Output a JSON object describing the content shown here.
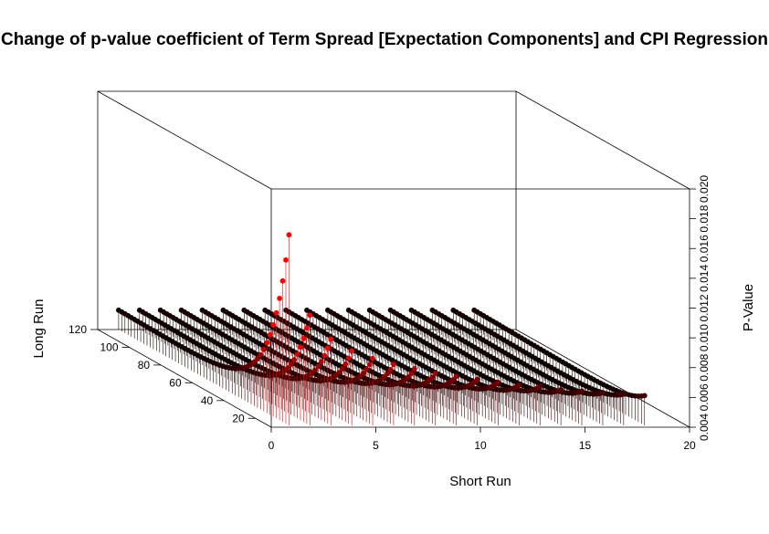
{
  "chart_data": {
    "type": "scatter",
    "title": "Change of p-value coefficient of Term Spread [Expectation Components] and CPI Regression",
    "xlabel": "Short Run",
    "ylabel": "Long Run",
    "zlabel": "P-Value",
    "x_ticks": [
      "0",
      "5",
      "10",
      "15",
      "20"
    ],
    "y_ticks": [
      "20",
      "40",
      "60",
      "80",
      "100",
      "120"
    ],
    "z_ticks": [
      "0.004",
      "0.006",
      "0.008",
      "0.010",
      "0.012",
      "0.014",
      "0.016",
      "0.018",
      "0.020"
    ],
    "xlim": [
      0,
      20
    ],
    "ylim": [
      10,
      120
    ],
    "zlim": [
      0.004,
      0.02
    ],
    "color_low": "#000000",
    "color_high": "#ff0000",
    "drop_lines": true,
    "series": [
      {
        "short_run": 1,
        "long_run_range": [
          12,
          120
        ],
        "peak_pvalue": 0.0168,
        "baseline_pvalue": 0.005
      },
      {
        "short_run": 2,
        "long_run_range": [
          12,
          120
        ],
        "peak_pvalue": 0.0114,
        "baseline_pvalue": 0.005
      },
      {
        "short_run": 3,
        "long_run_range": [
          12,
          120
        ],
        "peak_pvalue": 0.0098,
        "baseline_pvalue": 0.005
      },
      {
        "short_run": 4,
        "long_run_range": [
          12,
          120
        ],
        "peak_pvalue": 0.009,
        "baseline_pvalue": 0.005
      },
      {
        "short_run": 5,
        "long_run_range": [
          12,
          120
        ],
        "peak_pvalue": 0.0085,
        "baseline_pvalue": 0.005
      },
      {
        "short_run": 6,
        "long_run_range": [
          12,
          120
        ],
        "peak_pvalue": 0.0081,
        "baseline_pvalue": 0.005
      },
      {
        "short_run": 7,
        "long_run_range": [
          12,
          120
        ],
        "peak_pvalue": 0.0078,
        "baseline_pvalue": 0.005
      },
      {
        "short_run": 8,
        "long_run_range": [
          12,
          120
        ],
        "peak_pvalue": 0.0075,
        "baseline_pvalue": 0.005
      },
      {
        "short_run": 9,
        "long_run_range": [
          12,
          120
        ],
        "peak_pvalue": 0.0073,
        "baseline_pvalue": 0.005
      },
      {
        "short_run": 10,
        "long_run_range": [
          12,
          120
        ],
        "peak_pvalue": 0.0071,
        "baseline_pvalue": 0.005
      },
      {
        "short_run": 11,
        "long_run_range": [
          12,
          120
        ],
        "peak_pvalue": 0.0069,
        "baseline_pvalue": 0.005
      },
      {
        "short_run": 12,
        "long_run_range": [
          12,
          120
        ],
        "peak_pvalue": 0.0067,
        "baseline_pvalue": 0.005
      },
      {
        "short_run": 13,
        "long_run_range": [
          12,
          120
        ],
        "peak_pvalue": 0.0066,
        "baseline_pvalue": 0.005
      },
      {
        "short_run": 14,
        "long_run_range": [
          12,
          120
        ],
        "peak_pvalue": 0.0064,
        "baseline_pvalue": 0.005
      },
      {
        "short_run": 15,
        "long_run_range": [
          12,
          120
        ],
        "peak_pvalue": 0.0063,
        "baseline_pvalue": 0.005
      },
      {
        "short_run": 16,
        "long_run_range": [
          12,
          120
        ],
        "peak_pvalue": 0.0062,
        "baseline_pvalue": 0.005
      },
      {
        "short_run": 17,
        "long_run_range": [
          12,
          120
        ],
        "peak_pvalue": 0.0061,
        "baseline_pvalue": 0.005
      },
      {
        "short_run": 18,
        "long_run_range": [
          12,
          120
        ],
        "peak_pvalue": 0.006,
        "baseline_pvalue": 0.005
      }
    ]
  }
}
